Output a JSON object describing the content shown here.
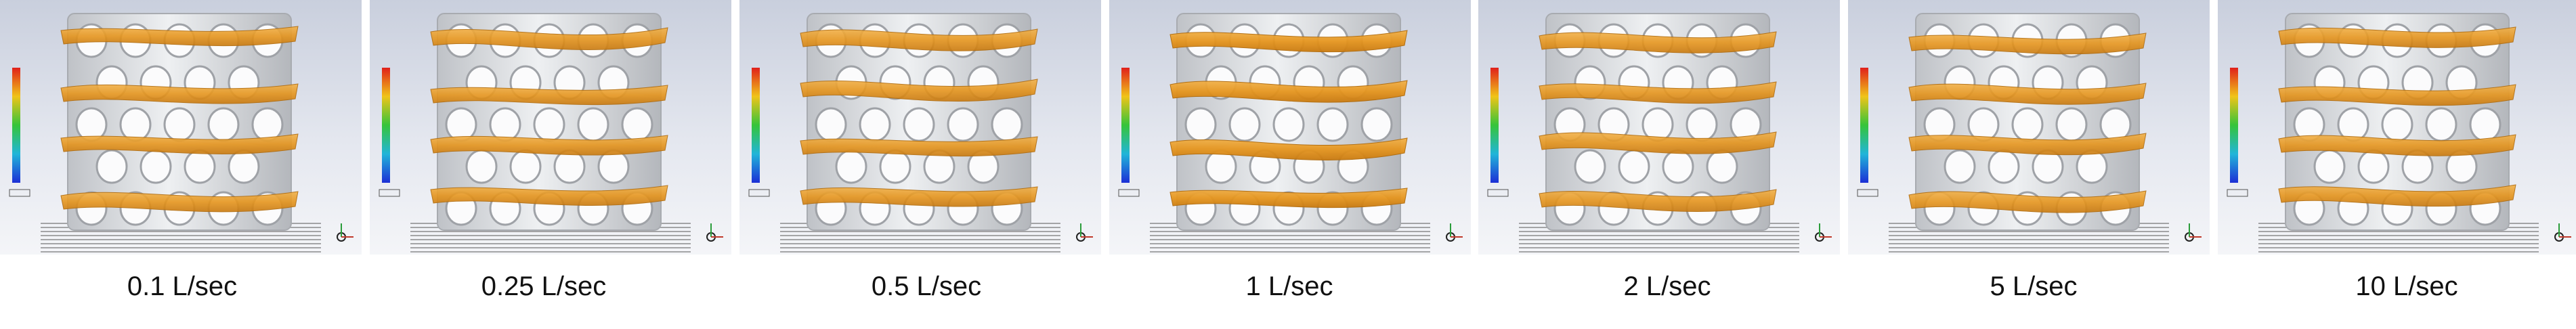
{
  "panels": [
    {
      "label": "0.1 L/sec"
    },
    {
      "label": "0.25 L/sec"
    },
    {
      "label": "0.5 L/sec"
    },
    {
      "label": "1 L/sec"
    },
    {
      "label": "2 L/sec"
    },
    {
      "label": "5 L/sec"
    },
    {
      "label": "10 L/sec"
    }
  ]
}
